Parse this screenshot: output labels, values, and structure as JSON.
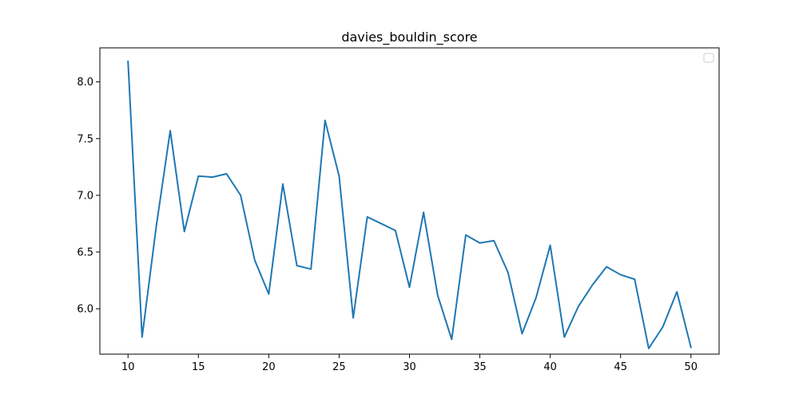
{
  "chart_data": {
    "type": "line",
    "title": "davies_bouldin_score",
    "xlabel": "",
    "ylabel": "",
    "xlim": [
      8,
      52
    ],
    "ylim": [
      5.6,
      8.3
    ],
    "xticks": [
      10,
      15,
      20,
      25,
      30,
      35,
      40,
      45,
      50
    ],
    "xtick_labels": [
      "10",
      "15",
      "20",
      "25",
      "30",
      "35",
      "40",
      "45",
      "50"
    ],
    "yticks": [
      6.0,
      6.5,
      7.0,
      7.5,
      8.0
    ],
    "ytick_labels": [
      "6.0",
      "6.5",
      "7.0",
      "7.5",
      "8.0"
    ],
    "grid": false,
    "legend": {
      "placement": "top-right",
      "entries": []
    },
    "series": [
      {
        "color": "#1f77b4",
        "x": [
          10,
          11,
          12,
          13,
          14,
          15,
          16,
          17,
          18,
          19,
          20,
          21,
          22,
          23,
          24,
          25,
          26,
          27,
          28,
          29,
          30,
          31,
          32,
          33,
          34,
          35,
          36,
          37,
          38,
          39,
          40,
          41,
          42,
          43,
          44,
          45,
          46,
          47,
          48,
          49,
          50
        ],
        "y": [
          8.18,
          5.75,
          6.72,
          7.57,
          6.68,
          7.17,
          7.16,
          7.19,
          7.0,
          6.43,
          6.13,
          7.1,
          6.38,
          6.35,
          7.66,
          7.17,
          5.92,
          6.81,
          6.75,
          6.69,
          6.19,
          6.85,
          6.12,
          5.73,
          6.65,
          6.58,
          6.6,
          6.32,
          5.78,
          6.1,
          6.56,
          5.75,
          6.02,
          6.21,
          6.37,
          6.3,
          6.26,
          5.65,
          5.84,
          6.15,
          5.66
        ]
      }
    ]
  }
}
